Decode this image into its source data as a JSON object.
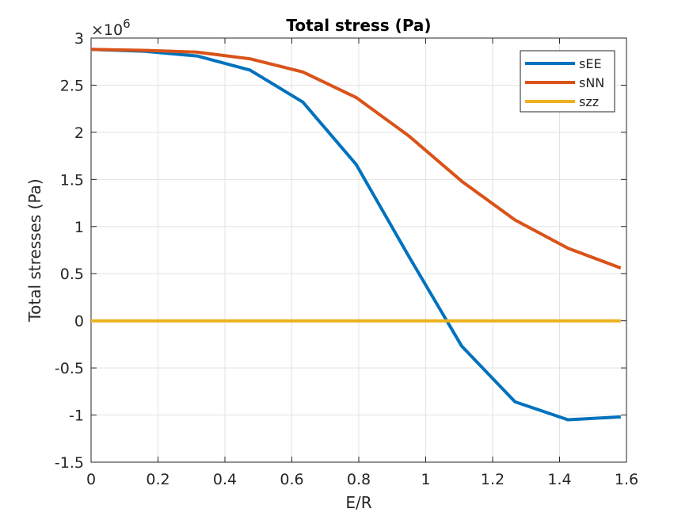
{
  "chart_data": {
    "type": "line",
    "title": "Total stress (Pa)",
    "xlabel": "E/R",
    "ylabel": "Total stresses (Pa)",
    "y_exponent_label": "×10",
    "y_exponent": "6",
    "xlim": [
      0,
      1.6
    ],
    "ylim": [
      -1.5,
      3
    ],
    "x_ticks": [
      0,
      0.2,
      0.4,
      0.6,
      0.8,
      1,
      1.2,
      1.4,
      1.6
    ],
    "y_ticks": [
      -1.5,
      -1,
      -0.5,
      0,
      0.5,
      1,
      1.5,
      2,
      2.5,
      3
    ],
    "x_tick_labels": [
      "0",
      "0.2",
      "0.4",
      "0.6",
      "0.8",
      "1",
      "1.2",
      "1.4",
      "1.6"
    ],
    "y_tick_labels": [
      "-1.5",
      "-1",
      "-0.5",
      "0",
      "0.5",
      "1",
      "1.5",
      "2",
      "2.5",
      "3"
    ],
    "grid": true,
    "legend_position": "top-right",
    "x": [
      0,
      0.158,
      0.317,
      0.475,
      0.633,
      0.792,
      0.95,
      1.108,
      1.267,
      1.425,
      1.583
    ],
    "series": [
      {
        "name": "sEE",
        "color": "#0072BD",
        "values": [
          2.88,
          2.86,
          2.81,
          2.66,
          2.32,
          1.66,
          0.68,
          -0.27,
          -0.86,
          -1.05,
          -1.02
        ]
      },
      {
        "name": "sNN",
        "color": "#D95319",
        "values": [
          2.88,
          2.87,
          2.85,
          2.78,
          2.64,
          2.37,
          1.96,
          1.48,
          1.07,
          0.77,
          0.56
        ]
      },
      {
        "name": "szz",
        "color": "#EDB120",
        "values": [
          0,
          0,
          0,
          0,
          0,
          0,
          0,
          0,
          0,
          0,
          0
        ]
      }
    ]
  }
}
